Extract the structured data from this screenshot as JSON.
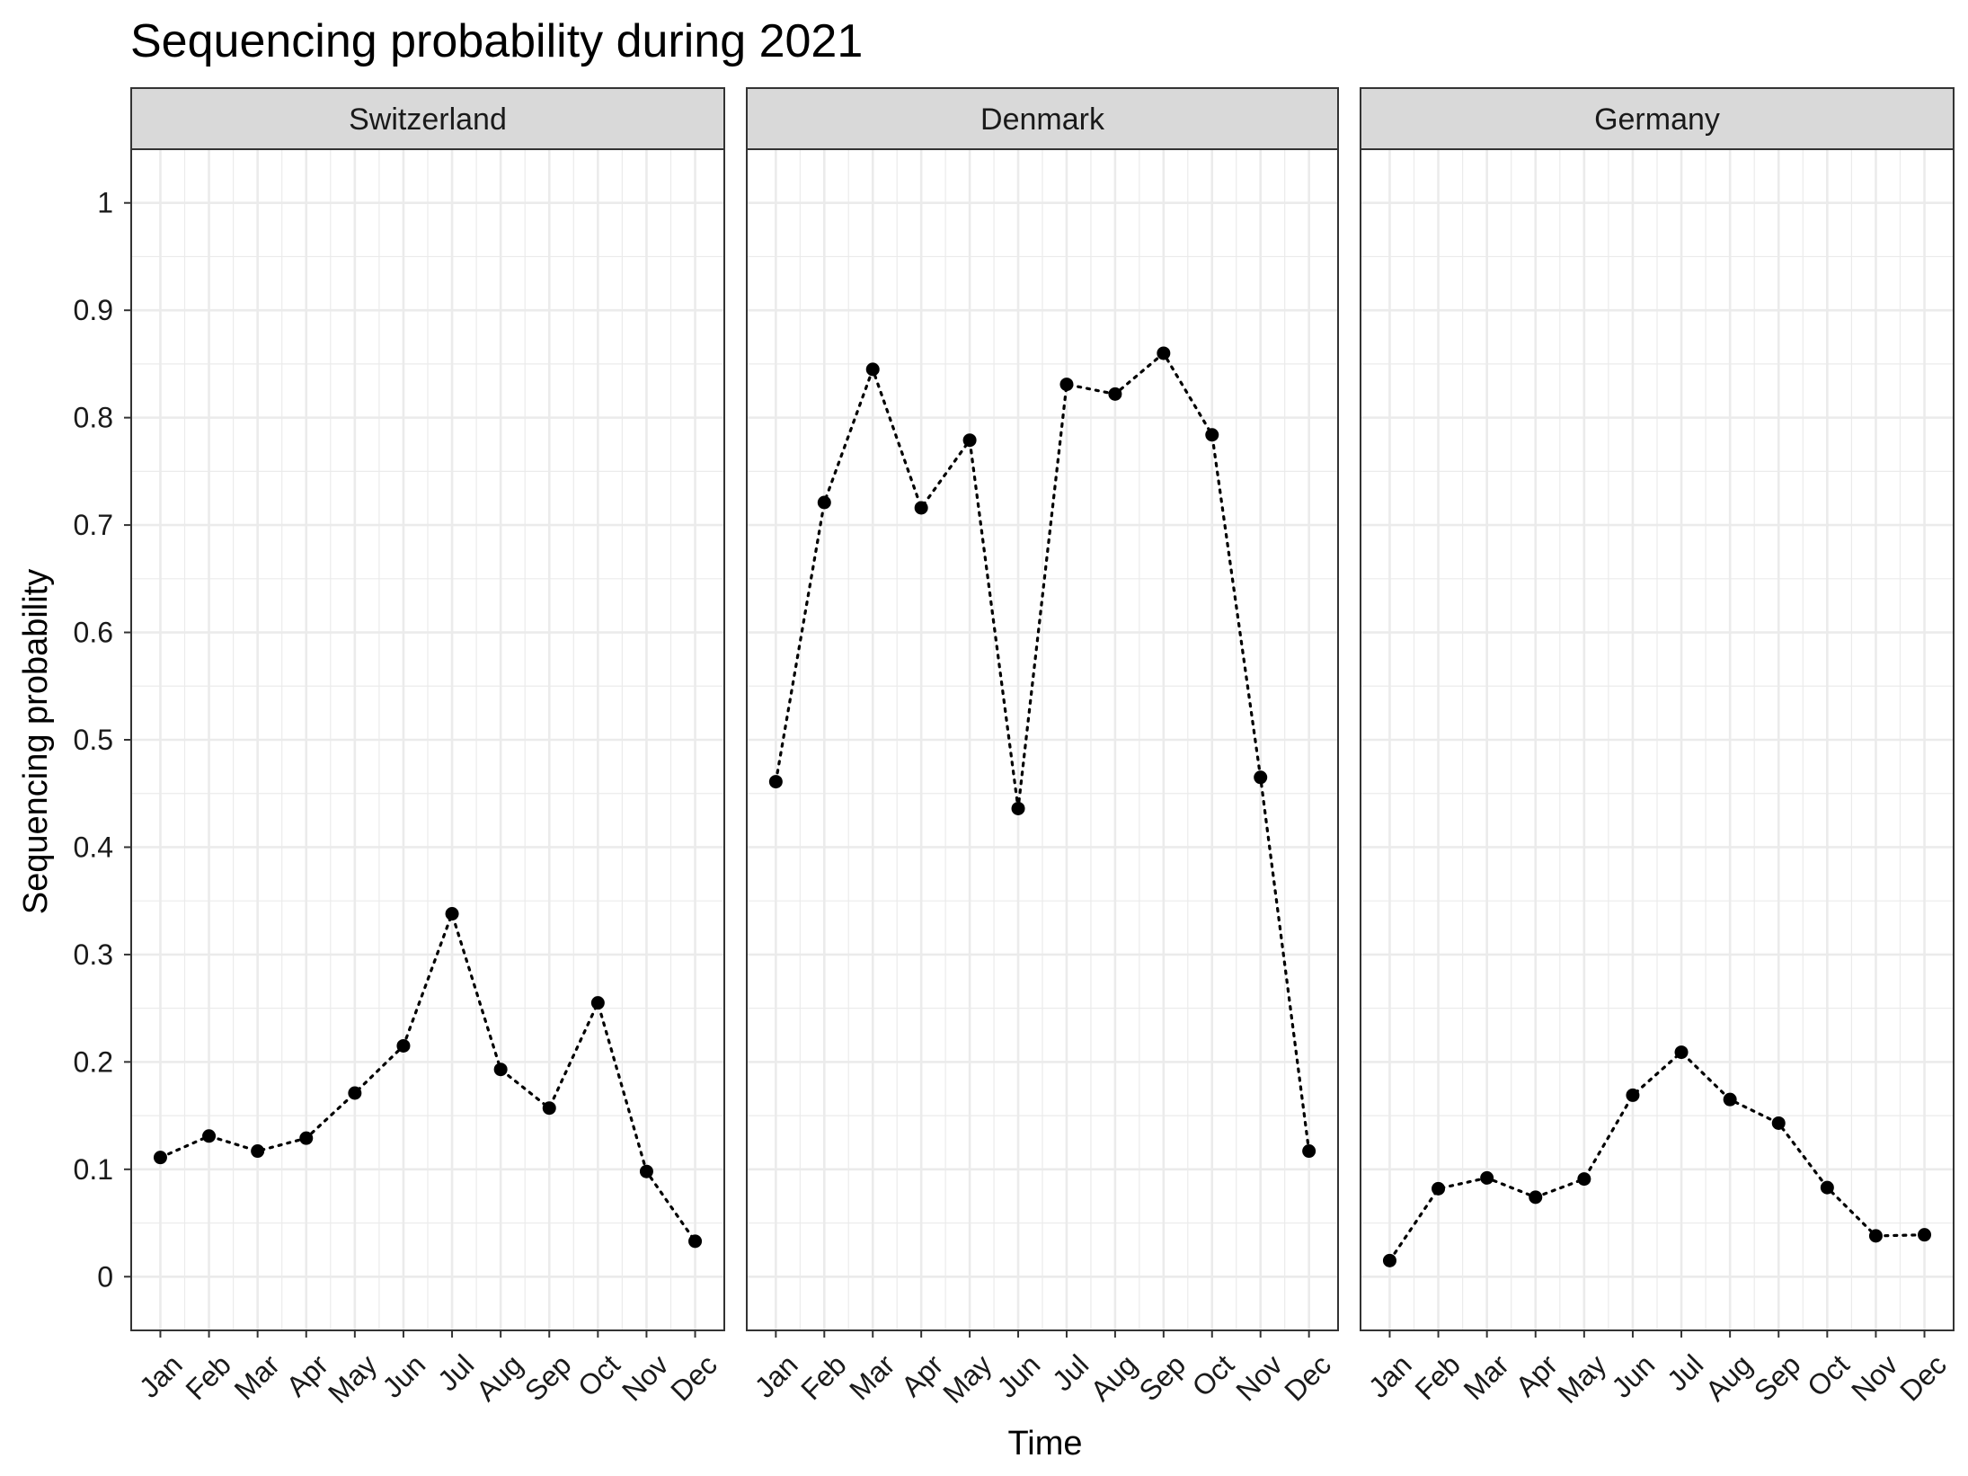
{
  "chart_data": {
    "type": "line",
    "title": "Sequencing probability during 2021",
    "xlabel": "Time",
    "ylabel": "Sequencing probability",
    "ylim": [
      -0.05,
      1.05
    ],
    "yticks": [
      0,
      0.1,
      0.2,
      0.3,
      0.4,
      0.5,
      0.6,
      0.7,
      0.8,
      0.9,
      1
    ],
    "ytick_labels": [
      "0",
      "0.1",
      "0.2",
      "0.3",
      "0.4",
      "0.5",
      "0.6",
      "0.7",
      "0.8",
      "0.9",
      "1"
    ],
    "categories": [
      "Jan",
      "Feb",
      "Mar",
      "Apr",
      "May",
      "Jun",
      "Jul",
      "Aug",
      "Sep",
      "Oct",
      "Nov",
      "Dec"
    ],
    "line_style": "dotted",
    "grid": true,
    "colors": {
      "point": "#000000",
      "line": "#000000",
      "grid": "#ebebeb",
      "strip": "#d9d9d9",
      "border": "#333333"
    },
    "panels": [
      {
        "name": "Switzerland",
        "values": [
          0.111,
          0.131,
          0.117,
          0.129,
          0.171,
          0.215,
          0.338,
          0.193,
          0.157,
          0.255,
          0.098,
          0.033
        ]
      },
      {
        "name": "Denmark",
        "values": [
          0.461,
          0.721,
          0.845,
          0.716,
          0.779,
          0.436,
          0.831,
          0.822,
          0.86,
          0.784,
          0.465,
          0.117
        ]
      },
      {
        "name": "Germany",
        "values": [
          0.015,
          0.082,
          0.092,
          0.074,
          0.091,
          0.169,
          0.209,
          0.165,
          0.143,
          0.083,
          0.038,
          0.039
        ]
      }
    ]
  }
}
